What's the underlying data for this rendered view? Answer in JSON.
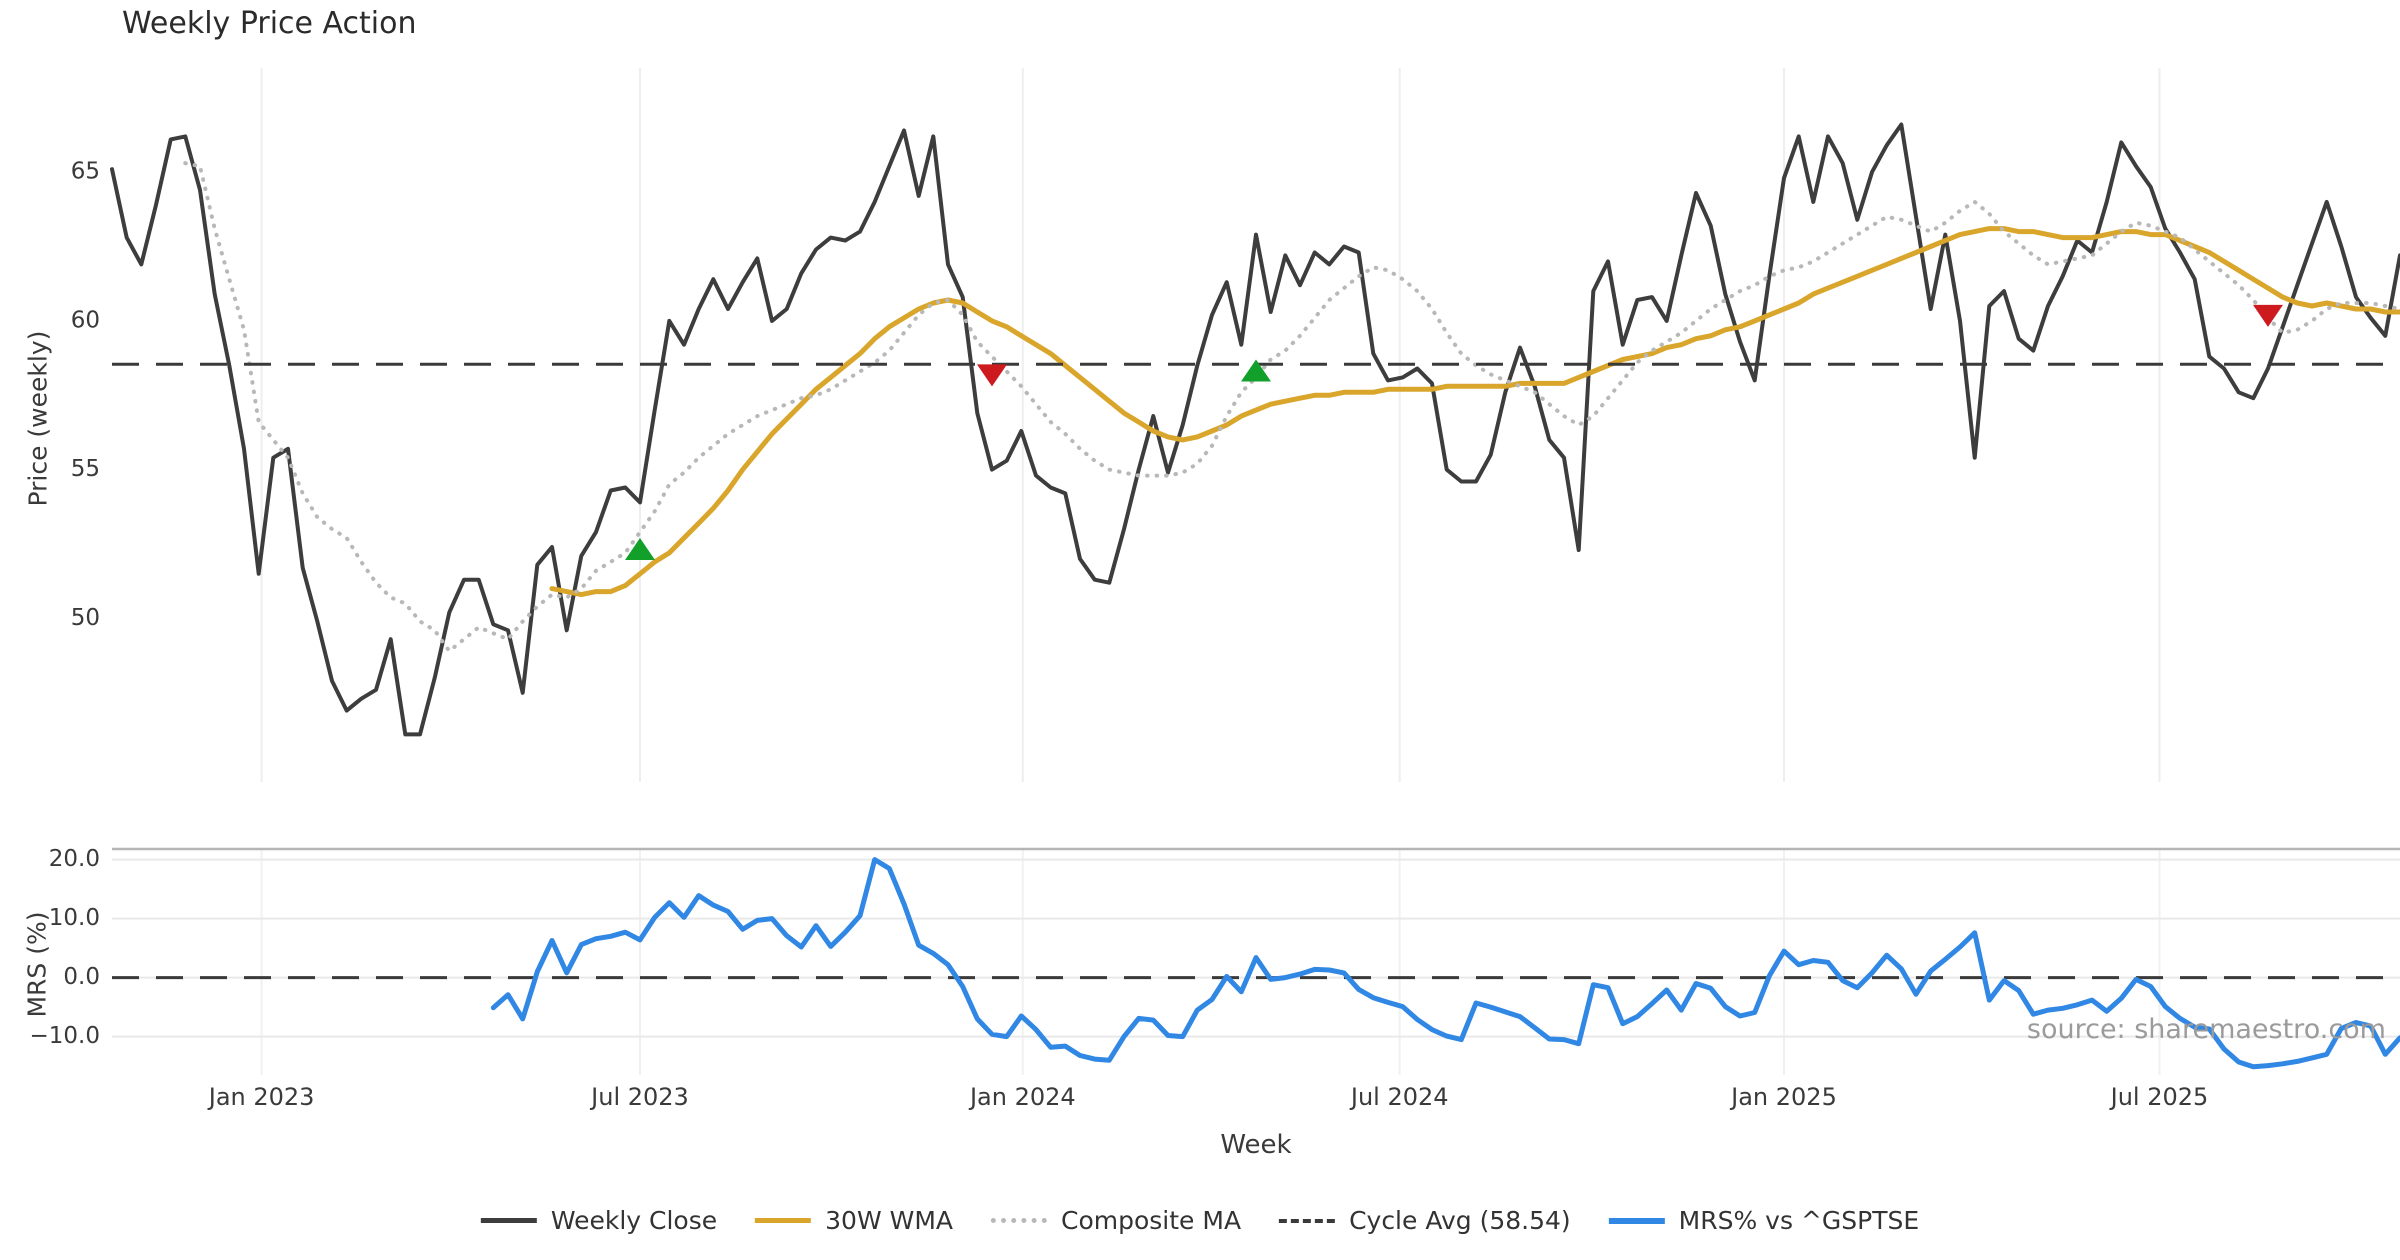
{
  "title": "Weekly Price Action",
  "watermark": "source: sharemaestro.com",
  "legend": {
    "weekly_close": "Weekly Close",
    "wma": "30W WMA",
    "composite": "Composite MA",
    "cycle_avg": "Cycle Avg (58.54)",
    "mrs": "MRS% vs ^GSPTSE"
  },
  "chart_data": {
    "type": "line",
    "title": "Weekly Price Action",
    "xlabel": "Week",
    "x_start_date": "2022-10-24",
    "x_step": "1 week",
    "n_weeks": 157,
    "x_ticks": [
      {
        "label": "Jan 2023",
        "week": 10.2
      },
      {
        "label": "Jul 2023",
        "week": 36.0
      },
      {
        "label": "Jan 2024",
        "week": 62.1
      },
      {
        "label": "Jul 2024",
        "week": 87.8
      },
      {
        "label": "Jan 2025",
        "week": 114.0
      },
      {
        "label": "Jul 2025",
        "week": 139.6
      }
    ],
    "panels": [
      {
        "name": "price",
        "ylabel": "Price (weekly)",
        "ylim": [
          44.5,
          68.5
        ],
        "yticks": [
          {
            "label": "65",
            "value": 65
          },
          {
            "label": "60",
            "value": 60
          },
          {
            "label": "55",
            "value": 55
          },
          {
            "label": "50",
            "value": 50
          }
        ],
        "grid": "vertical-light",
        "cycle_avg": 58.54,
        "series": [
          {
            "name": "Weekly Close",
            "color": "#3d3d3d",
            "style": "solid",
            "width": 4,
            "start_week": 0,
            "values": [
              65.1,
              62.8,
              61.9,
              63.9,
              66.1,
              66.2,
              64.4,
              60.9,
              58.5,
              55.7,
              51.5,
              55.4,
              55.7,
              51.7,
              49.9,
              47.9,
              46.9,
              47.3,
              47.6,
              49.3,
              46.1,
              46.1,
              48.0,
              50.2,
              51.3,
              51.3,
              49.8,
              49.6,
              47.5,
              51.8,
              52.4,
              49.6,
              52.1,
              52.9,
              54.3,
              54.4,
              53.9,
              57.0,
              60.0,
              59.2,
              60.4,
              61.4,
              60.4,
              61.3,
              62.1,
              60.0,
              60.4,
              61.6,
              62.4,
              62.8,
              62.7,
              63.0,
              64.0,
              65.2,
              66.4,
              64.2,
              66.2,
              61.9,
              60.8,
              56.9,
              55.0,
              55.3,
              56.3,
              54.8,
              54.4,
              54.2,
              52.0,
              51.3,
              51.2,
              53.0,
              55.0,
              56.8,
              54.9,
              56.5,
              58.5,
              60.2,
              61.3,
              59.2,
              62.9,
              60.3,
              62.2,
              61.2,
              62.3,
              61.9,
              62.5,
              62.3,
              58.9,
              58.0,
              58.1,
              58.4,
              57.9,
              55.0,
              54.6,
              54.6,
              55.5,
              57.6,
              59.1,
              57.8,
              56.0,
              55.4,
              52.3,
              61.0,
              62.0,
              59.2,
              60.7,
              60.8,
              60.0,
              62.2,
              64.3,
              63.2,
              60.9,
              59.3,
              58.0,
              61.5,
              64.8,
              66.2,
              64.0,
              66.2,
              65.3,
              63.4,
              65.0,
              65.9,
              66.6,
              63.5,
              60.4,
              62.9,
              60.0,
              55.4,
              60.5,
              61.0,
              59.4,
              59.0,
              60.5,
              61.5,
              62.7,
              62.3,
              64.0,
              66.0,
              65.2,
              64.5,
              63.1,
              62.3,
              61.4,
              58.8,
              58.4,
              57.6,
              57.4,
              58.4,
              59.8,
              61.2,
              62.6,
              64.0,
              62.5,
              60.8,
              60.1,
              59.5,
              62.2
            ]
          },
          {
            "name": "30W WMA",
            "color": "#d9a52b",
            "style": "solid",
            "width": 5,
            "start_week": 30,
            "values": [
              51.0,
              50.9,
              50.8,
              50.9,
              50.9,
              51.1,
              51.5,
              51.9,
              52.2,
              52.7,
              53.2,
              53.7,
              54.3,
              55.0,
              55.6,
              56.2,
              56.7,
              57.2,
              57.7,
              58.1,
              58.5,
              58.9,
              59.4,
              59.8,
              60.1,
              60.4,
              60.6,
              60.7,
              60.6,
              60.3,
              60.0,
              59.8,
              59.5,
              59.2,
              58.9,
              58.5,
              58.1,
              57.7,
              57.3,
              56.9,
              56.6,
              56.3,
              56.1,
              56.0,
              56.1,
              56.3,
              56.5,
              56.8,
              57.0,
              57.2,
              57.3,
              57.4,
              57.5,
              57.5,
              57.6,
              57.6,
              57.6,
              57.7,
              57.7,
              57.7,
              57.7,
              57.8,
              57.8,
              57.8,
              57.8,
              57.8,
              57.9,
              57.9,
              57.9,
              57.9,
              58.1,
              58.3,
              58.5,
              58.7,
              58.8,
              58.9,
              59.1,
              59.2,
              59.4,
              59.5,
              59.7,
              59.8,
              60.0,
              60.2,
              60.4,
              60.6,
              60.9,
              61.1,
              61.3,
              61.5,
              61.7,
              61.9,
              62.1,
              62.3,
              62.5,
              62.7,
              62.9,
              63.0,
              63.1,
              63.1,
              63.0,
              63.0,
              62.9,
              62.8,
              62.8,
              62.8,
              62.9,
              63.0,
              63.0,
              62.9,
              62.9,
              62.7,
              62.5,
              62.3,
              62.0,
              61.7,
              61.4,
              61.1,
              60.8,
              60.6,
              60.5,
              60.6,
              60.5,
              60.4,
              60.4,
              60.3,
              60.3
            ]
          },
          {
            "name": "Composite MA",
            "color": "#b8b8b8",
            "style": "dotted",
            "width": 4,
            "start_week": 5,
            "values": [
              65.3,
              65.2,
              63.1,
              61.4,
              59.7,
              56.6,
              56.0,
              55.4,
              54.2,
              53.4,
              53.0,
              52.7,
              51.9,
              51.2,
              50.7,
              50.5,
              49.9,
              49.6,
              48.9,
              49.3,
              49.7,
              49.5,
              49.3,
              49.9,
              50.4,
              50.8,
              50.7,
              51.0,
              51.6,
              51.9,
              52.2,
              52.9,
              53.6,
              54.5,
              54.9,
              55.4,
              55.8,
              56.2,
              56.5,
              56.8,
              57.0,
              57.2,
              57.4,
              57.5,
              57.7,
              58.0,
              58.3,
              58.6,
              59.0,
              59.6,
              60.2,
              60.6,
              60.7,
              60.2,
              59.3,
              58.8,
              58.3,
              57.8,
              57.2,
              56.6,
              56.2,
              55.7,
              55.3,
              55.0,
              54.9,
              54.8,
              54.8,
              54.8,
              54.9,
              55.2,
              55.8,
              56.8,
              57.6,
              58.1,
              58.7,
              59.0,
              59.5,
              60.1,
              60.7,
              61.1,
              61.5,
              61.8,
              61.7,
              61.4,
              61.0,
              60.4,
              59.6,
              58.9,
              58.5,
              58.2,
              58.0,
              57.8,
              57.6,
              57.2,
              56.8,
              56.5,
              56.8,
              57.4,
              58.0,
              58.6,
              59.0,
              59.3,
              59.6,
              60.0,
              60.4,
              60.7,
              61.0,
              61.2,
              61.5,
              61.7,
              61.8,
              62.0,
              62.3,
              62.6,
              62.9,
              63.2,
              63.5,
              63.4,
              63.2,
              63.0,
              63.3,
              63.7,
              64.0,
              63.6,
              63.0,
              62.6,
              62.2,
              61.9,
              62.0,
              62.1,
              62.2,
              62.6,
              63.0,
              63.3,
              63.2,
              63.0,
              62.8,
              62.4,
              62.0,
              61.6,
              61.2,
              60.7,
              60.1,
              59.6,
              59.7,
              60.0,
              60.4,
              60.6,
              60.6,
              60.6,
              60.5,
              60.4
            ]
          },
          {
            "name": "Cycle Avg (58.54)",
            "color": "#3a3a3a",
            "style": "dashed",
            "width": 3,
            "hline": 58.54
          }
        ],
        "markers": {
          "buy": {
            "shape": "triangle-up",
            "color": "#12a02b",
            "points": [
              {
                "week": 36,
                "value": 52.3
              },
              {
                "week": 78,
                "value": 58.3
              }
            ]
          },
          "sell": {
            "shape": "triangle-down",
            "color": "#cd1a1f",
            "points": [
              {
                "week": 60,
                "value": 58.2
              },
              {
                "week": 147,
                "value": 60.2
              }
            ]
          }
        }
      },
      {
        "name": "mrs",
        "ylabel": "MRS (%)",
        "ylim": [
          -16.5,
          21.8
        ],
        "yticks": [
          {
            "label": "20.0",
            "value": 20
          },
          {
            "label": "10.0",
            "value": 10
          },
          {
            "label": "0.0",
            "value": 0
          },
          {
            "label": "−10.0",
            "value": -10
          }
        ],
        "grid": "horizontal-light",
        "zero_line": {
          "style": "dashed",
          "color": "#3a3a3a"
        },
        "series": [
          {
            "name": "MRS% vs ^GSPTSE",
            "color": "#3187e4",
            "style": "solid",
            "width": 5,
            "start_week": 26,
            "values": [
              -5.1,
              -2.9,
              -7.0,
              1.0,
              6.3,
              0.8,
              5.6,
              6.6,
              7.0,
              7.7,
              6.4,
              10.2,
              12.7,
              10.2,
              13.9,
              12.3,
              11.2,
              8.2,
              9.7,
              10.0,
              7.1,
              5.2,
              8.8,
              5.3,
              7.7,
              10.5,
              20.0,
              18.5,
              12.5,
              5.5,
              4.1,
              2.2,
              -1.5,
              -7.0,
              -9.6,
              -10.0,
              -6.5,
              -8.8,
              -11.8,
              -11.6,
              -13.2,
              -13.8,
              -14.0,
              -10.0,
              -6.9,
              -7.2,
              -9.8,
              -10.0,
              -5.5,
              -3.7,
              0.2,
              -2.4,
              3.4,
              -0.3,
              0.0,
              0.6,
              1.4,
              1.3,
              0.8,
              -2.0,
              -3.4,
              -4.2,
              -4.9,
              -7.1,
              -8.8,
              -9.9,
              -10.5,
              -4.3,
              -5.0,
              -5.8,
              -6.6,
              -8.5,
              -10.4,
              -10.5,
              -11.2,
              -1.2,
              -1.7,
              -7.8,
              -6.6,
              -4.4,
              -2.1,
              -5.5,
              -1.0,
              -1.8,
              -4.9,
              -6.5,
              -5.9,
              0.3,
              4.5,
              2.2,
              2.9,
              2.6,
              -0.5,
              -1.7,
              0.8,
              3.8,
              1.5,
              -2.8,
              1.1,
              3.1,
              5.2,
              7.6,
              -3.8,
              -0.5,
              -2.2,
              -6.2,
              -5.5,
              -5.2,
              -4.6,
              -3.8,
              -5.7,
              -3.5,
              -0.3,
              -1.5,
              -4.9,
              -6.9,
              -8.4,
              -8.7,
              -12.1,
              -14.3,
              -15.1,
              -14.9,
              -14.6,
              -14.2,
              -13.6,
              -13.0,
              -8.6,
              -7.6,
              -8.2,
              -13.0,
              -10.2
            ]
          }
        ]
      }
    ],
    "legend_entries": [
      "Weekly Close",
      "30W WMA",
      "Composite MA",
      "Cycle Avg (58.54)",
      "MRS% vs ^GSPTSE"
    ],
    "legend_position": "bottom-center",
    "source_note": "source: sharemaestro.com"
  }
}
